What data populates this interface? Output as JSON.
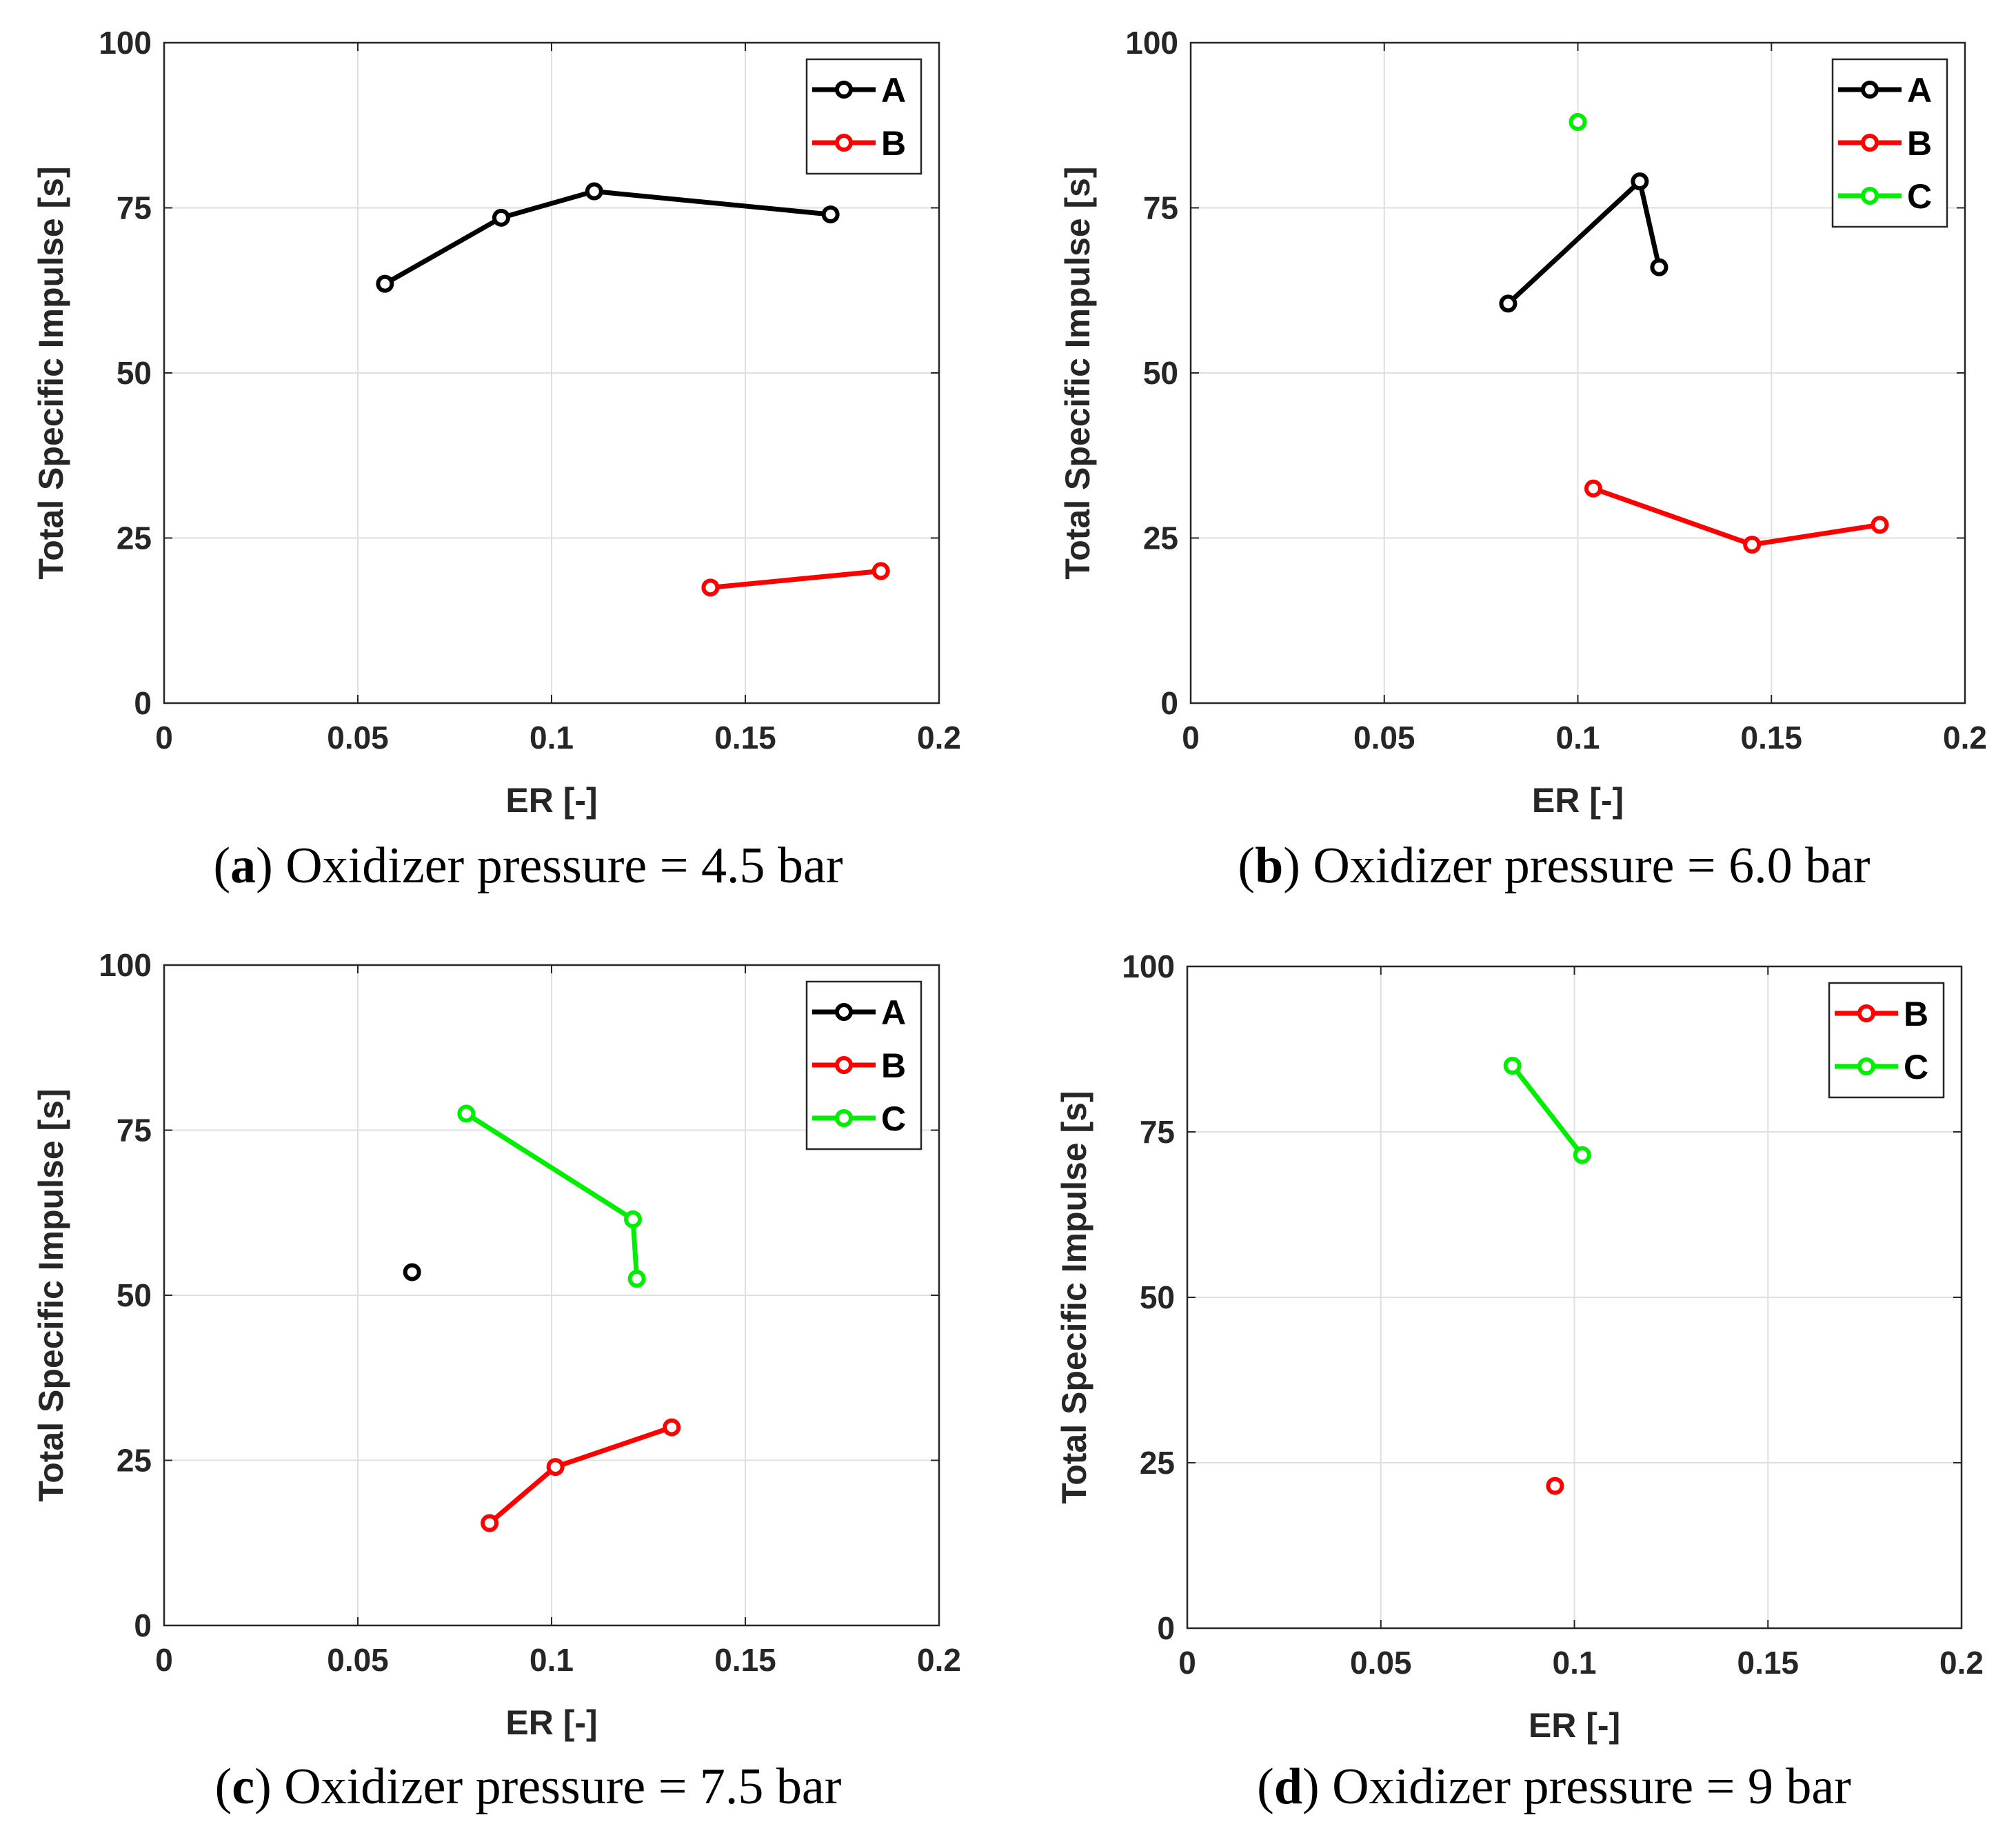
{
  "chart_data": [
    {
      "type": "line",
      "caption_letter": "a",
      "caption_text": "Oxidizer pressure = 4.5 bar",
      "xlabel": "ER [-]",
      "ylabel": "Total Specific Impulse [s]",
      "xlim": [
        0,
        0.2
      ],
      "ylim": [
        0,
        100
      ],
      "xticks": [
        0,
        0.05,
        0.1,
        0.15,
        0.2
      ],
      "xtick_labels": [
        "0",
        "0.05",
        "0.1",
        "0.15",
        "0.2"
      ],
      "yticks": [
        0,
        25,
        50,
        75,
        100
      ],
      "ytick_labels": [
        "0",
        "25",
        "50",
        "75",
        "100"
      ],
      "grid": true,
      "legend_position": "top-right",
      "series": [
        {
          "name": "A",
          "color": "#000000",
          "x": [
            0.057,
            0.087,
            0.111,
            0.172
          ],
          "y": [
            63.5,
            73.5,
            77.5,
            74.0
          ]
        },
        {
          "name": "B",
          "color": "#ff0000",
          "x": [
            0.141,
            0.185
          ],
          "y": [
            17.5,
            20.0
          ]
        }
      ]
    },
    {
      "type": "line",
      "caption_letter": "b",
      "caption_text": "Oxidizer pressure = 6.0 bar",
      "xlabel": "ER [-]",
      "ylabel": "Total Specific Impulse [s]",
      "xlim": [
        0,
        0.2
      ],
      "ylim": [
        0,
        100
      ],
      "xticks": [
        0,
        0.05,
        0.1,
        0.15,
        0.2
      ],
      "xtick_labels": [
        "0",
        "0.05",
        "0.1",
        "0.15",
        "0.2"
      ],
      "yticks": [
        0,
        25,
        50,
        75,
        100
      ],
      "ytick_labels": [
        "0",
        "25",
        "50",
        "75",
        "100"
      ],
      "grid": true,
      "legend_position": "top-right",
      "series": [
        {
          "name": "A",
          "color": "#000000",
          "x": [
            0.082,
            0.116,
            0.121
          ],
          "y": [
            60.5,
            79.0,
            66.0
          ]
        },
        {
          "name": "B",
          "color": "#ff0000",
          "x": [
            0.104,
            0.145,
            0.178
          ],
          "y": [
            32.5,
            24.0,
            27.0
          ]
        },
        {
          "name": "C",
          "color": "#00ee00",
          "x": [
            0.1
          ],
          "y": [
            88.0
          ]
        }
      ]
    },
    {
      "type": "line",
      "caption_letter": "c",
      "caption_text": "Oxidizer pressure = 7.5 bar",
      "xlabel": "ER [-]",
      "ylabel": "Total Specific Impulse [s]",
      "xlim": [
        0,
        0.2
      ],
      "ylim": [
        0,
        100
      ],
      "xticks": [
        0,
        0.05,
        0.1,
        0.15,
        0.2
      ],
      "xtick_labels": [
        "0",
        "0.05",
        "0.1",
        "0.15",
        "0.2"
      ],
      "yticks": [
        0,
        25,
        50,
        75,
        100
      ],
      "ytick_labels": [
        "0",
        "25",
        "50",
        "75",
        "100"
      ],
      "grid": true,
      "legend_position": "top-right",
      "series": [
        {
          "name": "A",
          "color": "#000000",
          "x": [
            0.064
          ],
          "y": [
            53.5
          ]
        },
        {
          "name": "B",
          "color": "#ff0000",
          "x": [
            0.084,
            0.101,
            0.131
          ],
          "y": [
            15.5,
            24.0,
            30.0
          ]
        },
        {
          "name": "C",
          "color": "#00ee00",
          "x": [
            0.078,
            0.121,
            0.122
          ],
          "y": [
            77.5,
            61.5,
            52.5
          ]
        }
      ]
    },
    {
      "type": "line",
      "caption_letter": "d",
      "caption_text": "Oxidizer pressure = 9 bar",
      "xlabel": "ER [-]",
      "ylabel": "Total Specific Impulse [s]",
      "xlim": [
        0,
        0.2
      ],
      "ylim": [
        0,
        100
      ],
      "xticks": [
        0,
        0.05,
        0.1,
        0.15,
        0.2
      ],
      "xtick_labels": [
        "0",
        "0.05",
        "0.1",
        "0.15",
        "0.2"
      ],
      "yticks": [
        0,
        25,
        50,
        75,
        100
      ],
      "ytick_labels": [
        "0",
        "25",
        "50",
        "75",
        "100"
      ],
      "grid": true,
      "legend_position": "top-right",
      "series": [
        {
          "name": "B",
          "color": "#ff0000",
          "x": [
            0.095
          ],
          "y": [
            21.5
          ]
        },
        {
          "name": "C",
          "color": "#00ee00",
          "x": [
            0.084,
            0.102
          ],
          "y": [
            85.0,
            71.5
          ]
        }
      ]
    }
  ]
}
